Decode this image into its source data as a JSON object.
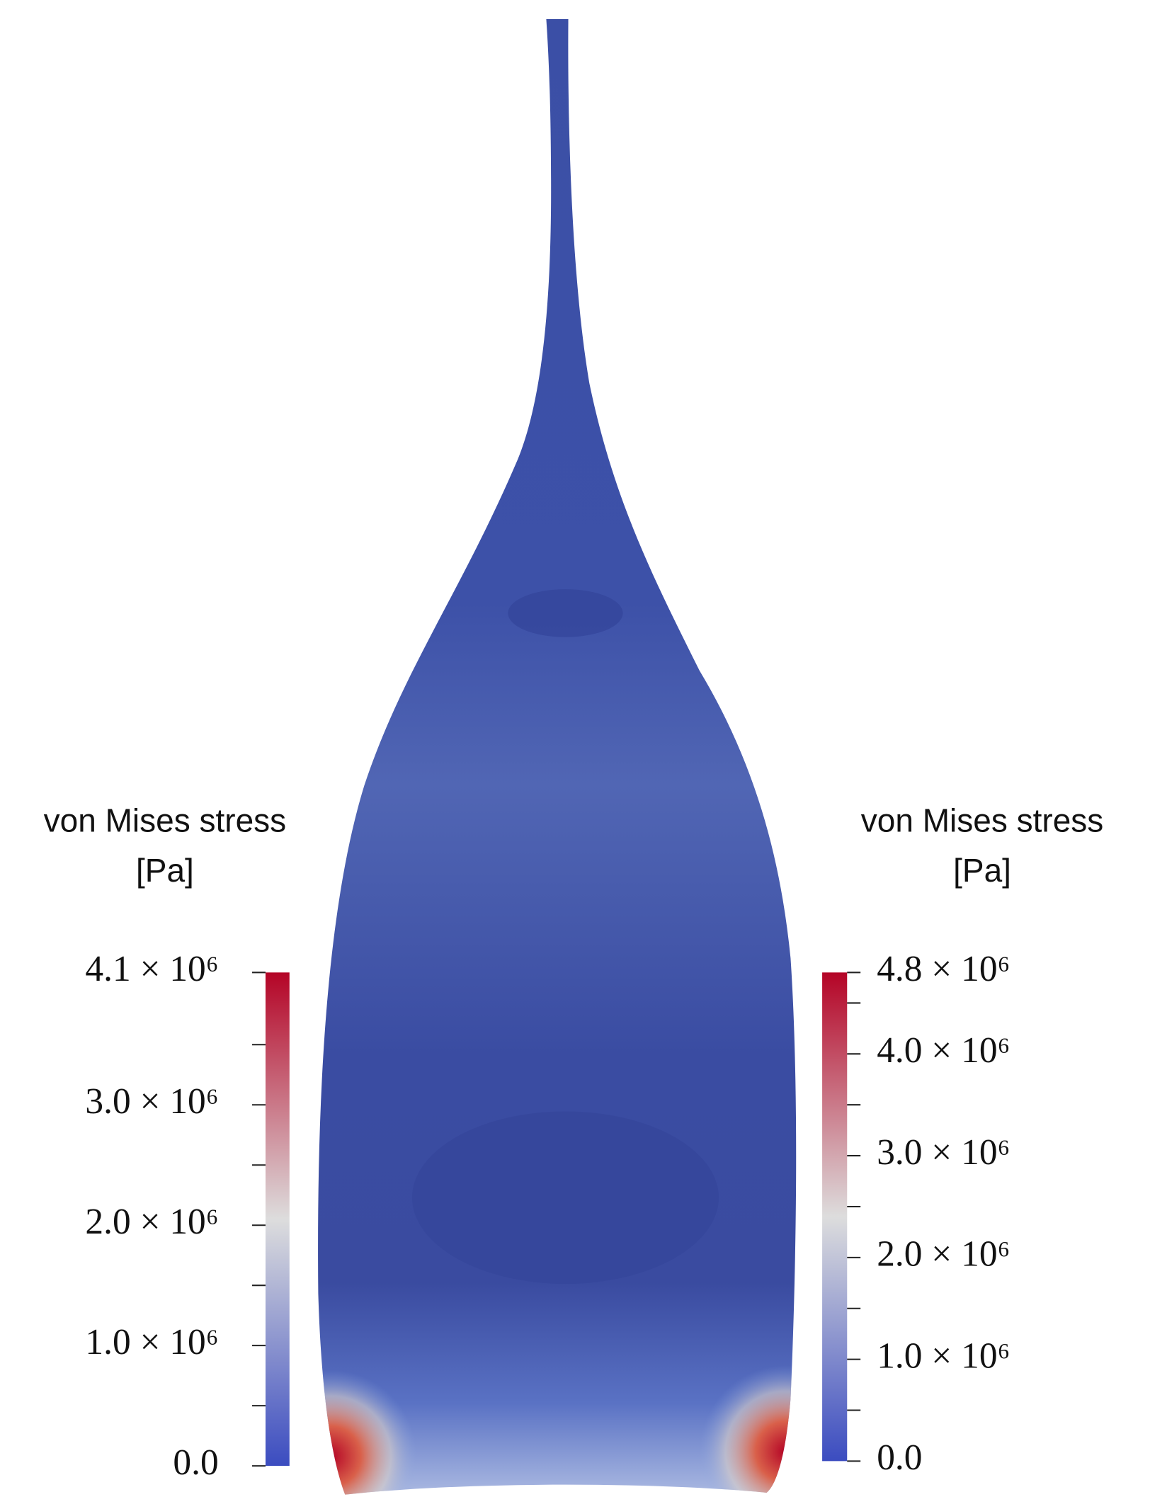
{
  "chart_data": [
    {
      "type": "colorbar",
      "title": [
        "von Mises stress",
        "[Pa]"
      ],
      "colors": [
        "#3b4cc0",
        "#dddddd",
        "#b40426"
      ],
      "ylim": [
        0,
        4100000
      ],
      "yticks": [
        {
          "value": 0,
          "label": "0.0"
        },
        {
          "value": 1000000,
          "label": "1.0 × 10⁶"
        },
        {
          "value": 2000000,
          "label": "2.0 × 10⁶"
        },
        {
          "value": 3000000,
          "label": "3.0 × 10⁶"
        },
        {
          "value": 4100000,
          "label": "4.1 × 10⁶"
        }
      ],
      "minor_yticks": [
        500000,
        1500000,
        2500000,
        3500000
      ]
    },
    {
      "type": "colorbar",
      "title": [
        "von Mises stress",
        "[Pa]"
      ],
      "colors": [
        "#3b4cc0",
        "#dddddd",
        "#b40426"
      ],
      "ylim": [
        0,
        4800000
      ],
      "yticks": [
        {
          "value": 0,
          "label": "0.0"
        },
        {
          "value": 1000000,
          "label": "1.0 × 10⁶"
        },
        {
          "value": 2000000,
          "label": "2.0 × 10⁶"
        },
        {
          "value": 3000000,
          "label": "3.0 × 10⁶"
        },
        {
          "value": 4000000,
          "label": "4.0 × 10⁶"
        },
        {
          "value": 4800000,
          "label": "4.8 × 10⁶"
        }
      ],
      "minor_yticks": [
        500000,
        1500000,
        2500000,
        3500000,
        4500000
      ]
    }
  ]
}
